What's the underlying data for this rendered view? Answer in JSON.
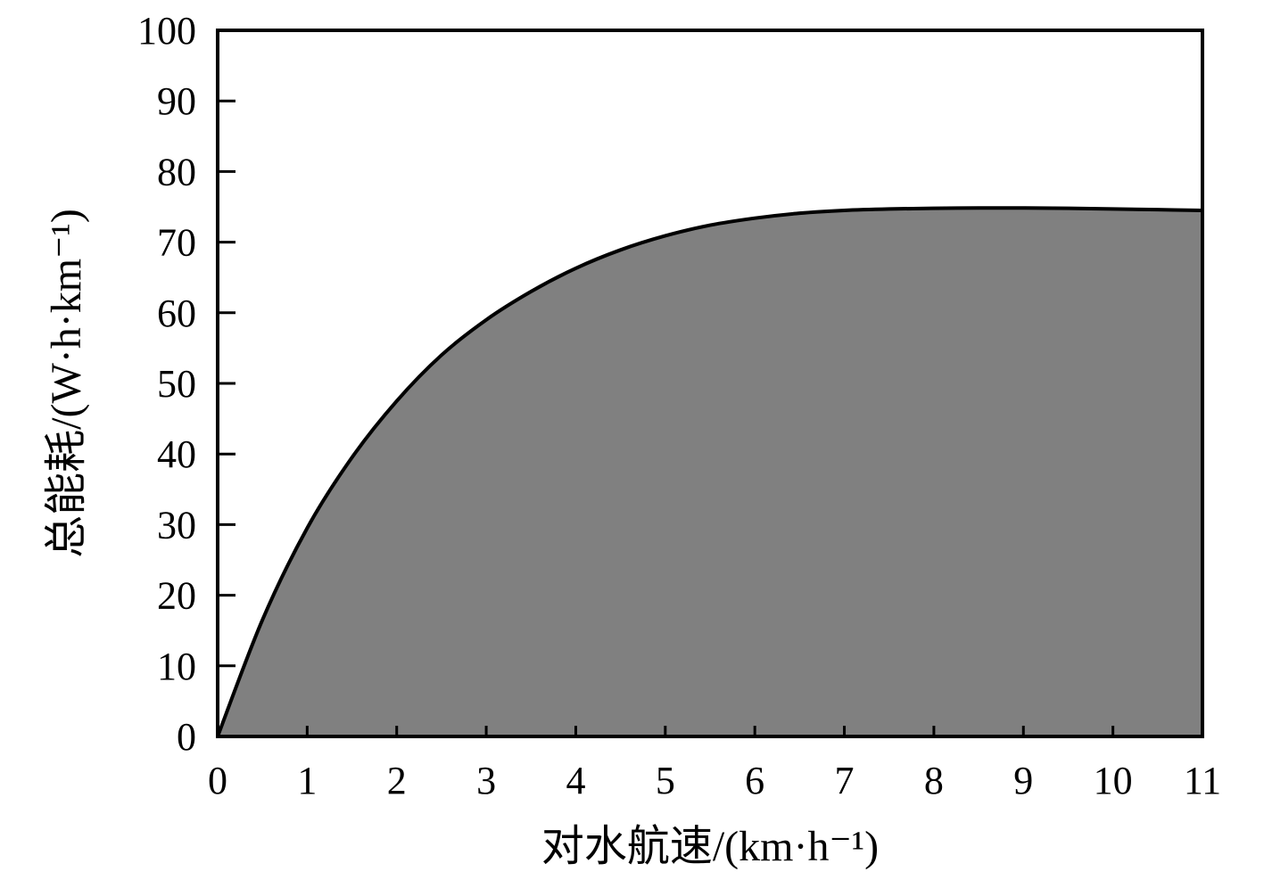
{
  "chart_data": {
    "type": "area",
    "xlabel": "对水航速/(km·h⁻¹)",
    "ylabel": "总能耗/(W·h·km⁻¹)",
    "xlim": [
      0,
      11
    ],
    "ylim": [
      0,
      100
    ],
    "xticks": [
      0,
      1,
      2,
      3,
      4,
      5,
      6,
      7,
      8,
      9,
      10,
      11
    ],
    "yticks": [
      0,
      10,
      20,
      30,
      40,
      50,
      60,
      70,
      80,
      90,
      100
    ],
    "grid": false,
    "legend": "none",
    "fill_color": "#808080",
    "line_color": "#000000",
    "series": [
      {
        "x": [
          0,
          0.5,
          1,
          1.5,
          2,
          2.5,
          3,
          3.5,
          4,
          4.5,
          5,
          5.5,
          6,
          6.5,
          7,
          7.5,
          8,
          8.5,
          9,
          9.5,
          10,
          10.5,
          11
        ],
        "y": [
          0,
          16.5,
          29.5,
          39.5,
          47.5,
          54,
          59,
          63,
          66.3,
          68.9,
          70.9,
          72.4,
          73.4,
          74.1,
          74.5,
          74.7,
          74.8,
          74.85,
          74.85,
          74.8,
          74.7,
          74.6,
          74.5
        ]
      }
    ]
  }
}
